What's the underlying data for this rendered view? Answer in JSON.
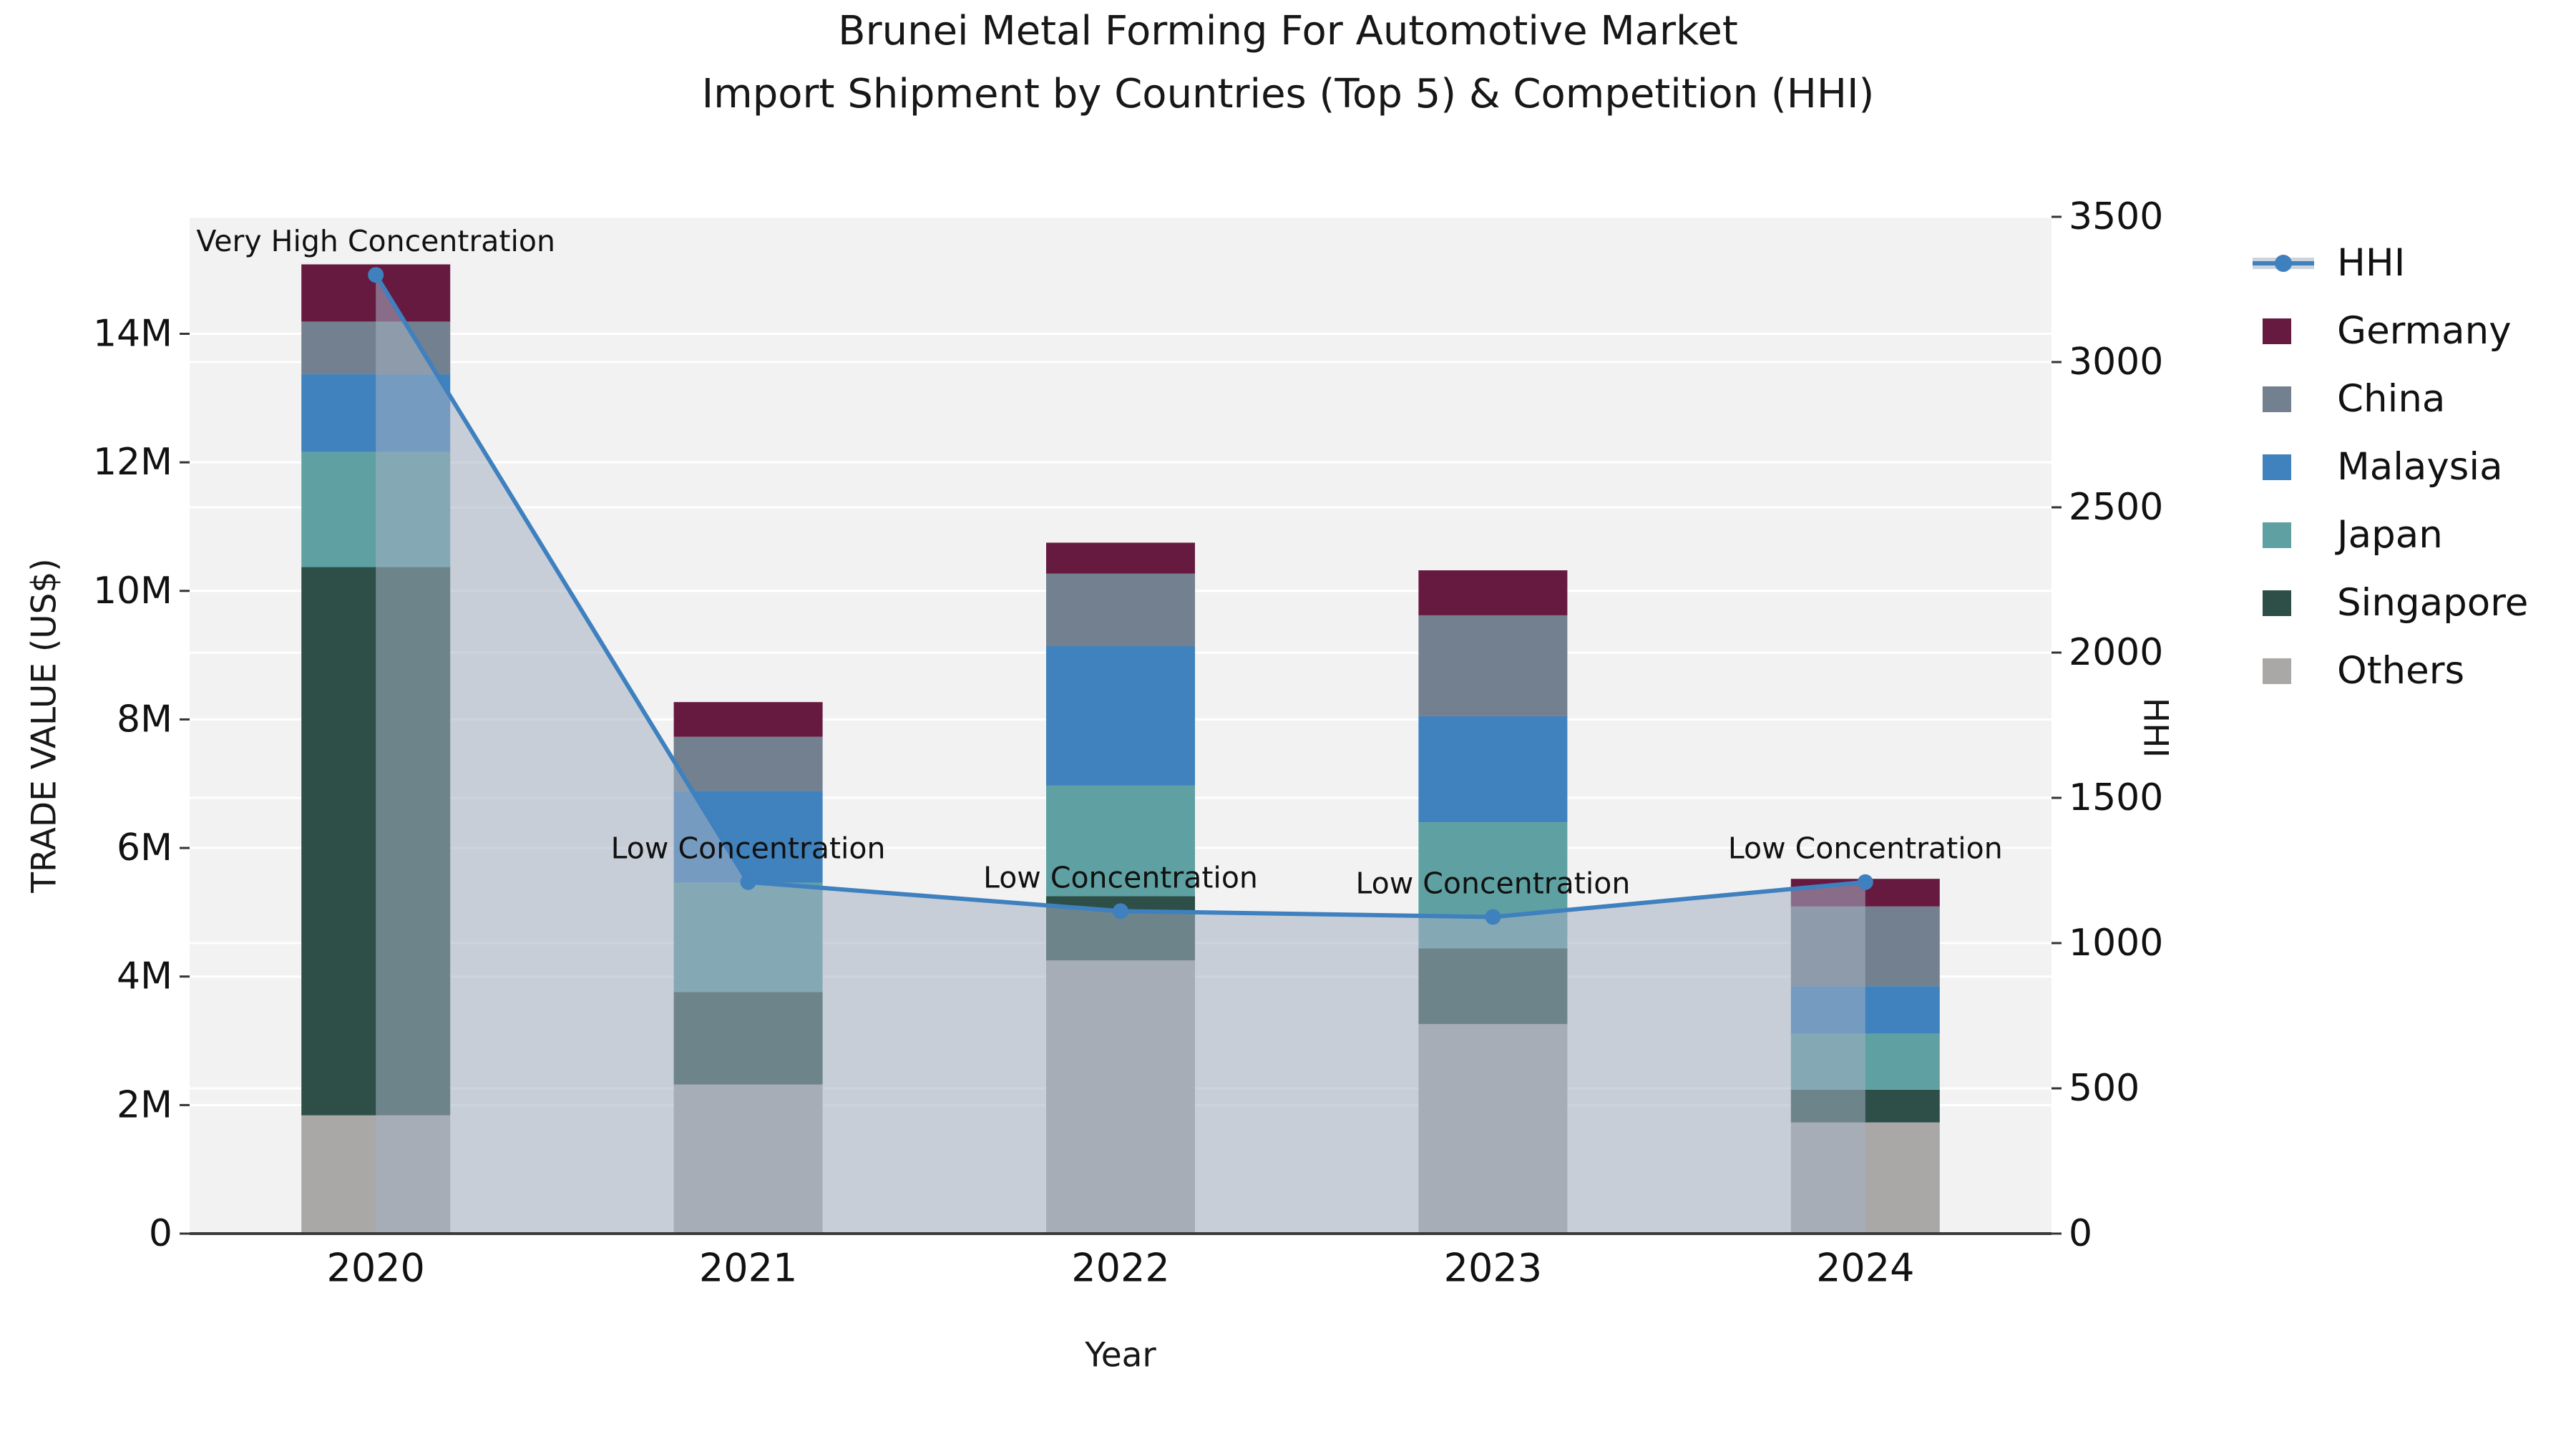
{
  "title": {
    "line1": "Brunei Metal Forming For Automotive Market",
    "line2": "Import Shipment by Countries (Top 5) & Competition (HHI)"
  },
  "axes": {
    "x_label": "Year",
    "y_left_label": "TRADE VALUE (US$)",
    "y_right_label": "HHI",
    "y_left_ticks": [
      {
        "label": "0",
        "value_musd": 0
      },
      {
        "label": "2M",
        "value_musd": 2
      },
      {
        "label": "4M",
        "value_musd": 4
      },
      {
        "label": "6M",
        "value_musd": 6
      },
      {
        "label": "8M",
        "value_musd": 8
      },
      {
        "label": "10M",
        "value_musd": 10
      },
      {
        "label": "12M",
        "value_musd": 12
      },
      {
        "label": "14M",
        "value_musd": 14
      }
    ],
    "y_left_max_musd": 15.82,
    "y_right_ticks": [
      {
        "label": "0",
        "value": 0
      },
      {
        "label": "500",
        "value": 500
      },
      {
        "label": "1000",
        "value": 1000
      },
      {
        "label": "1500",
        "value": 1500
      },
      {
        "label": "2000",
        "value": 2000
      },
      {
        "label": "2500",
        "value": 2500
      },
      {
        "label": "3000",
        "value": 3000
      },
      {
        "label": "3500",
        "value": 3500
      }
    ],
    "y_right_max": 3500
  },
  "chart_data": {
    "type": "stacked-bar+line",
    "title": "Brunei Metal Forming For Automotive Market — Import Shipment by Countries (Top 5) & Competition (HHI)",
    "categories": [
      "2020",
      "2021",
      "2022",
      "2023",
      "2024"
    ],
    "value_unit": "US$ millions (trade value, left axis); HHI index (right axis)",
    "stack_order_bottom_to_top": [
      "Others",
      "Singapore",
      "Japan",
      "Malaysia",
      "China",
      "Germany"
    ],
    "series": [
      {
        "name": "Others",
        "color": "#aaa8a7",
        "values_musd": [
          1.84,
          2.32,
          4.25,
          3.26,
          1.73
        ]
      },
      {
        "name": "Singapore",
        "color": "#2d4f48",
        "values_musd": [
          8.53,
          1.44,
          1.0,
          1.18,
          0.51
        ]
      },
      {
        "name": "Japan",
        "color": "#5fa1a2",
        "values_musd": [
          1.79,
          1.7,
          1.72,
          1.96,
          0.87
        ]
      },
      {
        "name": "Malaysia",
        "color": "#3f82bd",
        "values_musd": [
          1.21,
          1.43,
          2.17,
          1.65,
          0.74
        ]
      },
      {
        "name": "China",
        "color": "#72808f",
        "values_musd": [
          0.82,
          0.84,
          1.13,
          1.57,
          1.24
        ]
      },
      {
        "name": "Germany",
        "color": "#671a40",
        "values_musd": [
          0.89,
          0.54,
          0.48,
          0.7,
          0.43
        ]
      }
    ],
    "bar_totals_musd": [
      15.08,
      8.27,
      10.75,
      10.32,
      5.52
    ],
    "line": {
      "name": "HHI",
      "color": "#3f80bf",
      "area_fill_color": "rgba(164,176,194,0.55)",
      "values": [
        3300,
        1210,
        1110,
        1090,
        1210
      ]
    },
    "annotations": [
      {
        "category": "2020",
        "text": "Very High Concentration"
      },
      {
        "category": "2021",
        "text": "Low Concentration"
      },
      {
        "category": "2022",
        "text": "Low Concentration"
      },
      {
        "category": "2023",
        "text": "Low Concentration"
      },
      {
        "category": "2024",
        "text": "Low Concentration"
      }
    ],
    "plot_background": "#f2f2f2",
    "gridline_color": "#ffffff",
    "grid": "horizontal, both axes tick sets",
    "legend_position": "outside right"
  },
  "legend": {
    "items": [
      {
        "key": "hhi",
        "label": "HHI",
        "type": "line",
        "color": "#3f80bf",
        "band_color": "#ccd3dd"
      },
      {
        "key": "germany",
        "label": "Germany",
        "type": "square",
        "color": "#671a40"
      },
      {
        "key": "china",
        "label": "China",
        "type": "square",
        "color": "#72808f"
      },
      {
        "key": "malaysia",
        "label": "Malaysia",
        "type": "square",
        "color": "#3f82bd"
      },
      {
        "key": "japan",
        "label": "Japan",
        "type": "square",
        "color": "#5fa1a2"
      },
      {
        "key": "singapore",
        "label": "Singapore",
        "type": "square",
        "color": "#2d4f48"
      },
      {
        "key": "others",
        "label": "Others",
        "type": "square",
        "color": "#aaa8a7"
      }
    ]
  }
}
